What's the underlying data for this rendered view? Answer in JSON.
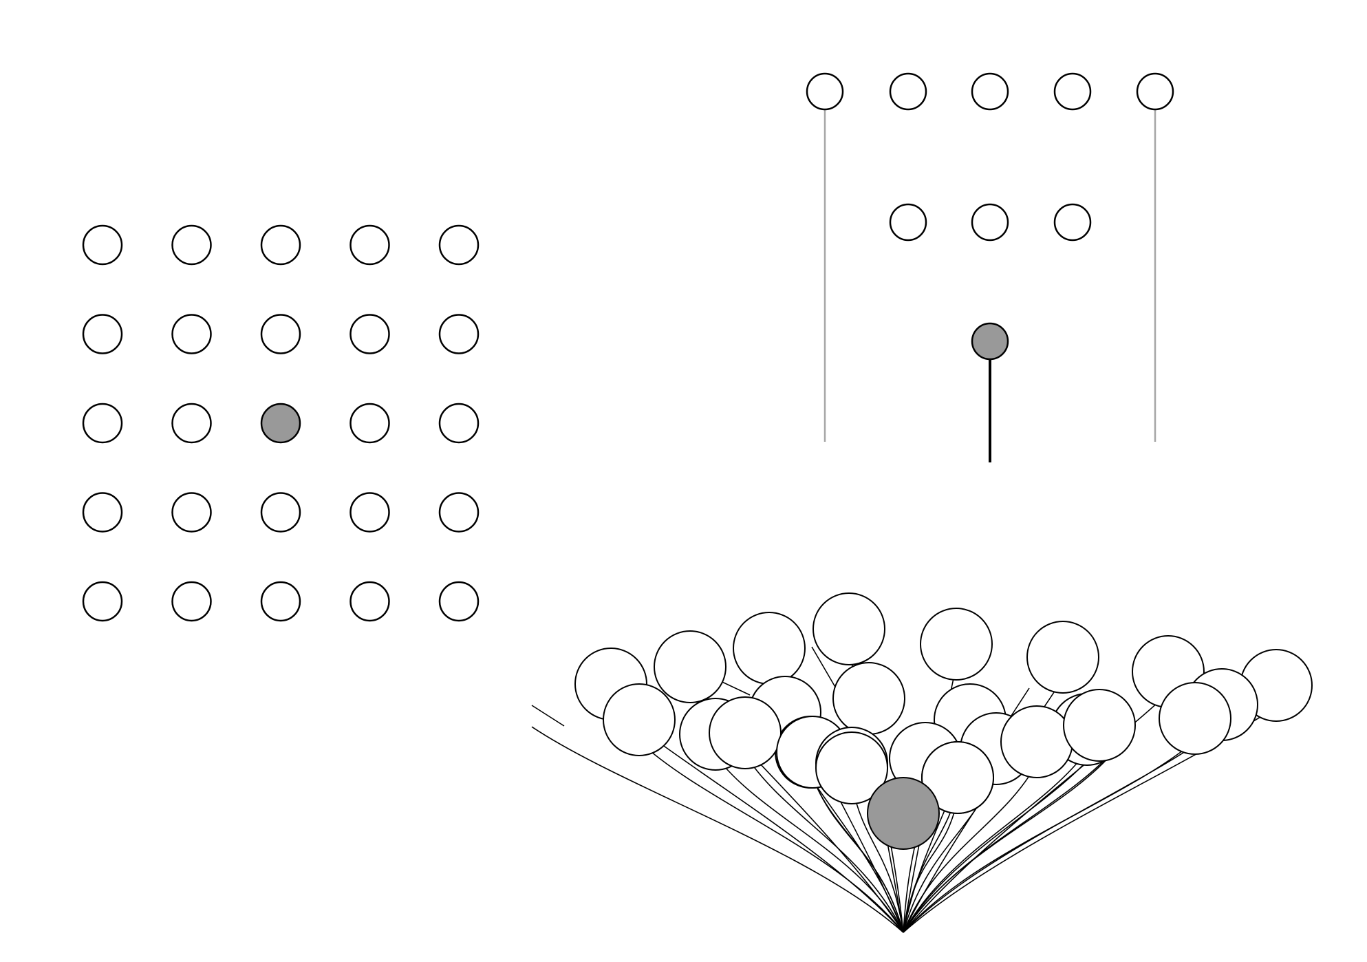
{
  "colors": {
    "background": "#ffffff",
    "node_fill": "#ffffff",
    "highlight_fill": "#999999",
    "stroke": "#000000",
    "gray_edge": "#a6a6a6"
  },
  "panels": {
    "grid": {
      "rows": 5,
      "cols": 5,
      "highlighted": {
        "row": 2,
        "col": 2
      }
    },
    "columns": {
      "top_row_count": 5,
      "middle_row_count": 3,
      "gray_line_columns": [
        0,
        4
      ],
      "highlighted_node": "bottom",
      "highlighted_edge": "black-stem"
    },
    "fan": {
      "node_count": 30,
      "highlighted_node": "center",
      "root": "apex"
    }
  }
}
